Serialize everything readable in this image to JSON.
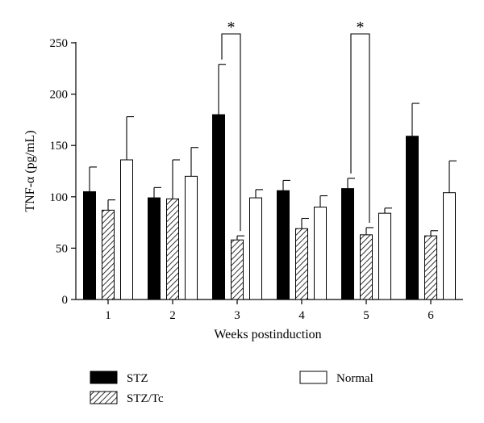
{
  "chart_data": {
    "type": "bar",
    "xlabel": "Weeks postinduction",
    "ylabel": "TNF-α (pg/mL)",
    "ylim": [
      0,
      250
    ],
    "yticks": [
      "0",
      "50",
      "100",
      "150",
      "200",
      "250"
    ],
    "categories": [
      "1",
      "2",
      "3",
      "4",
      "5",
      "6"
    ],
    "series": [
      {
        "name": "STZ",
        "fill": "solid-black",
        "values": [
          105,
          99,
          180,
          106,
          108,
          159
        ],
        "errors": [
          24,
          10,
          49,
          10,
          10,
          32
        ]
      },
      {
        "name": "STZ/Tc",
        "fill": "diagonal-hatch",
        "values": [
          87,
          98,
          58,
          69,
          63,
          62
        ],
        "errors": [
          10,
          38,
          4,
          10,
          7,
          5
        ]
      },
      {
        "name": "Normal",
        "fill": "white",
        "values": [
          136,
          120,
          99,
          90,
          84,
          104
        ],
        "errors": [
          42,
          28,
          8,
          11,
          5,
          31
        ]
      }
    ],
    "significance": [
      {
        "category": "3",
        "between": [
          "STZ",
          "STZ/Tc"
        ],
        "label": "*"
      },
      {
        "category": "5",
        "between": [
          "STZ",
          "STZ/Tc"
        ],
        "label": "*"
      }
    ],
    "legend": {
      "placement": "bottom",
      "entries": [
        "STZ",
        "STZ/Tc",
        "Normal"
      ]
    },
    "grid": false,
    "colors": {
      "bar_dark": "#000000",
      "bar_light": "#ffffff",
      "hatch": "#000000"
    }
  }
}
